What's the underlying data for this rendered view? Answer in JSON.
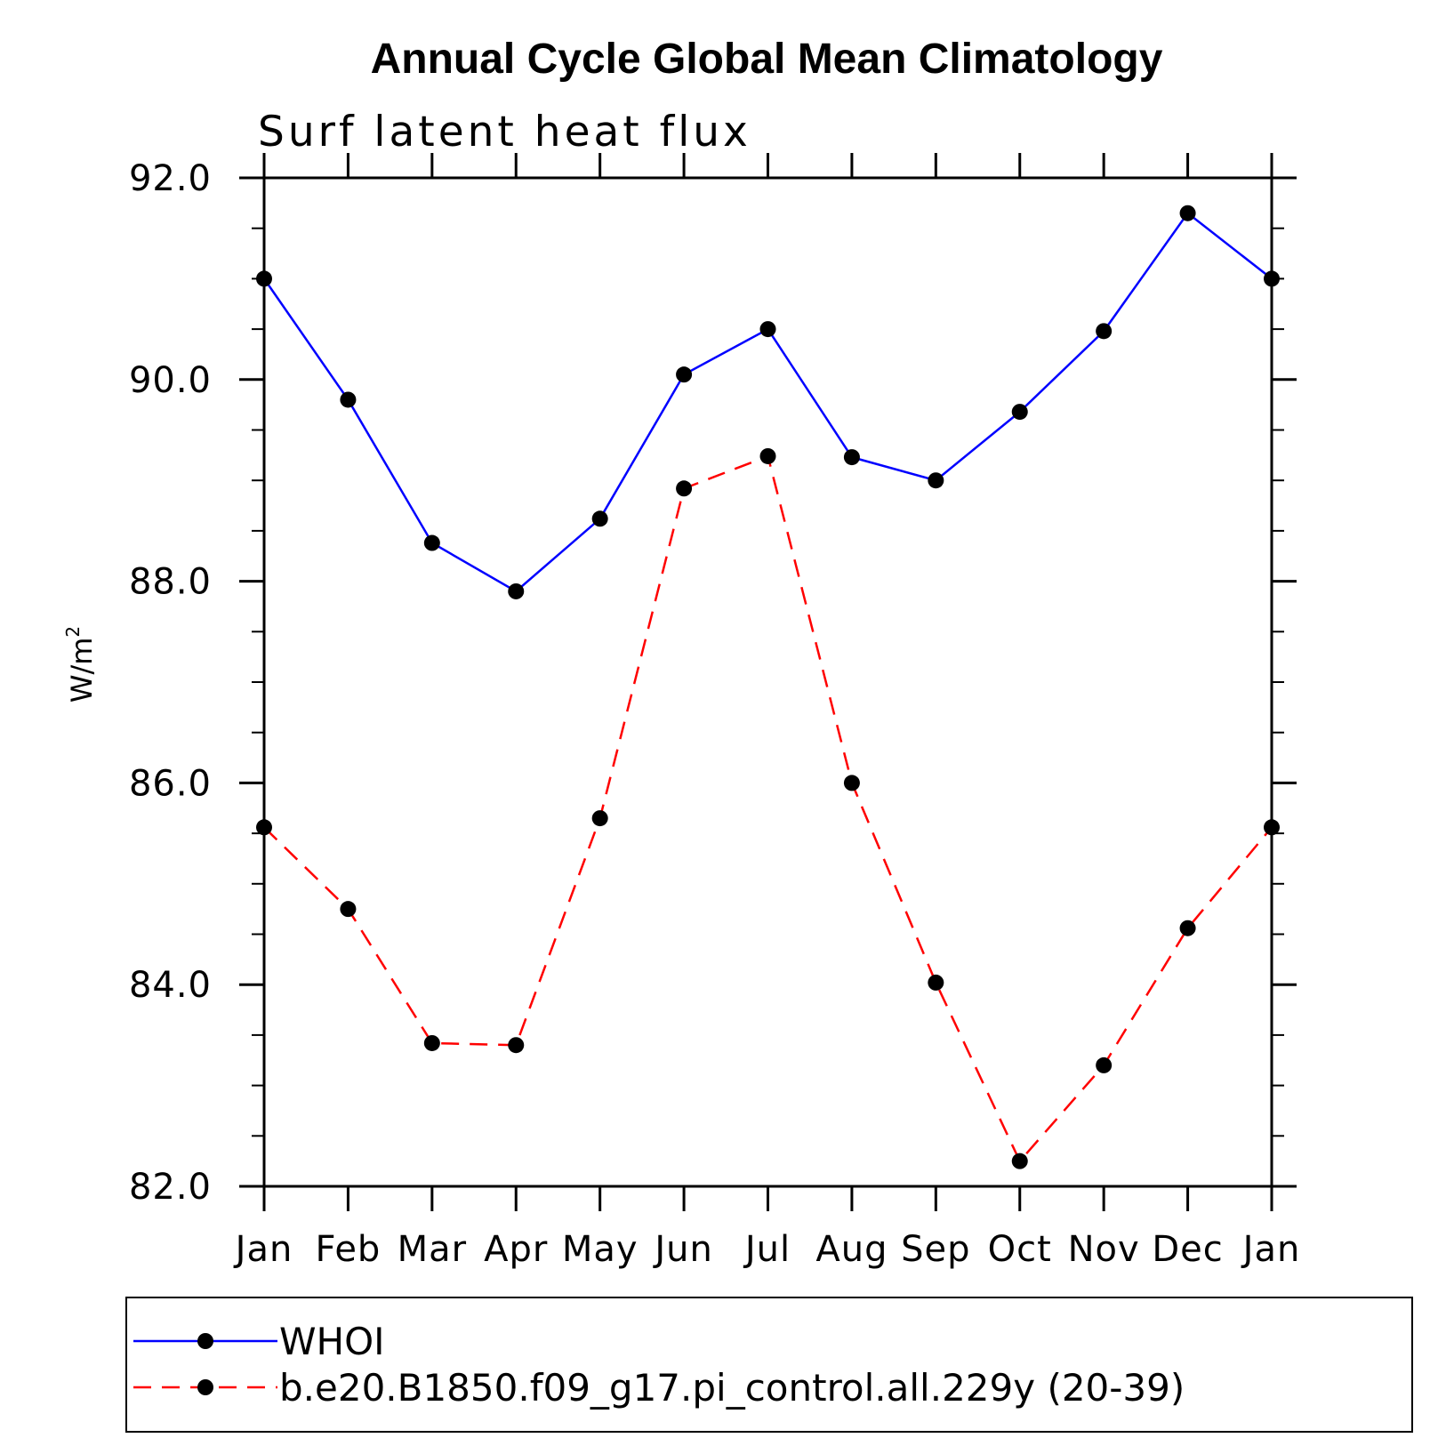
{
  "chart_data": {
    "type": "line",
    "title": "Annual Cycle Global Mean Climatology",
    "subtitle": "Surf latent heat flux",
    "xlabel": "",
    "ylabel": "W/m",
    "ylabel_superscript": "2",
    "categories": [
      "Jan",
      "Feb",
      "Mar",
      "Apr",
      "May",
      "Jun",
      "Jul",
      "Aug",
      "Sep",
      "Oct",
      "Nov",
      "Dec",
      "Jan"
    ],
    "ylim": [
      82.0,
      92.0
    ],
    "yticks": [
      "82.0",
      "84.0",
      "86.0",
      "88.0",
      "90.0",
      "92.0"
    ],
    "grid": false,
    "legend_position": "bottom",
    "series": [
      {
        "name": "WHOI",
        "color": "#0000ff",
        "line_style": "solid",
        "marker": "filled-circle",
        "values": [
          91.0,
          89.8,
          88.38,
          87.9,
          88.62,
          90.05,
          90.5,
          89.23,
          89.0,
          89.68,
          90.48,
          91.65,
          91.0
        ]
      },
      {
        "name": "b.e20.B1850.f09_g17.pi_control.all.229y (20-39)",
        "color": "#ff0000",
        "line_style": "dashed",
        "marker": "filled-circle",
        "values": [
          85.56,
          84.75,
          83.42,
          83.4,
          85.65,
          88.92,
          89.24,
          86.0,
          84.02,
          82.25,
          83.2,
          84.56,
          85.56
        ]
      }
    ]
  }
}
